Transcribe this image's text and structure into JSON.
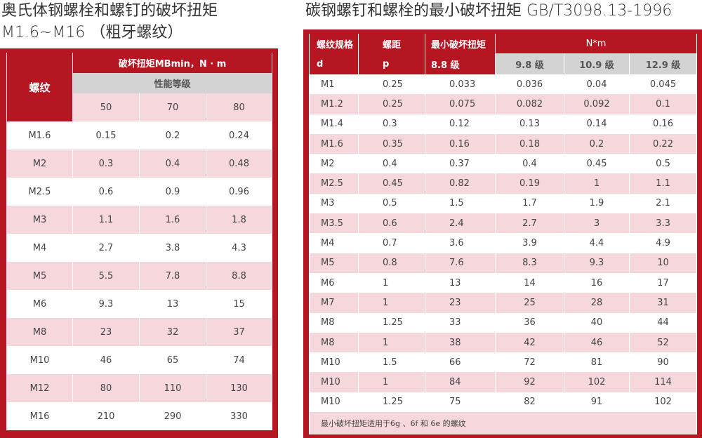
{
  "left": {
    "title_line1": "奥氏体钢螺栓和螺钉的破坏扭矩",
    "title_line2": "M1.6~M16 （粗牙螺纹）",
    "header_thread": "螺纹",
    "header_torque": "破坏扭矩MBmin，N · m",
    "header_grade": "性能等级",
    "grades": [
      "50",
      "70",
      "80"
    ],
    "rows": [
      [
        "M1.6",
        "0.15",
        "0.2",
        "0.24"
      ],
      [
        "M2",
        "0.3",
        "0.4",
        "0.48"
      ],
      [
        "M2.5",
        "0.6",
        "0.9",
        "0.96"
      ],
      [
        "M3",
        "1.1",
        "1.6",
        "1.8"
      ],
      [
        "M4",
        "2.7",
        "3.8",
        "4.3"
      ],
      [
        "M5",
        "5.5",
        "7.8",
        "8.8"
      ],
      [
        "M6",
        "9.3",
        "13",
        "15"
      ],
      [
        "M8",
        "23",
        "32",
        "37"
      ],
      [
        "M10",
        "46",
        "65",
        "74"
      ],
      [
        "M12",
        "80",
        "110",
        "130"
      ],
      [
        "M16",
        "210",
        "290",
        "330"
      ]
    ]
  },
  "right": {
    "title": "碳钢螺钉和螺栓的最小破坏扭矩 GB/T3098.13-1996",
    "h_spec": "螺纹规格",
    "h_spec_sub": "d",
    "h_pitch": "螺距",
    "h_pitch_sub": "p",
    "h_min": "最小破坏扭矩",
    "h_min_sub": "8.8 级",
    "h_unit": "N*m",
    "grades": [
      "9.8 级",
      "10.9 级",
      "12.9 级"
    ],
    "rows": [
      [
        "M1",
        "0.25",
        "0.033",
        "0.036",
        "0.04",
        "0.045"
      ],
      [
        "M1.2",
        "0.25",
        "0.075",
        "0.082",
        "0.092",
        "0.1"
      ],
      [
        "M1.4",
        "0.3",
        "0.12",
        "0.13",
        "0.14",
        "0.16"
      ],
      [
        "M1.6",
        "0.35",
        "0.16",
        "0.18",
        "0.2",
        "0.22"
      ],
      [
        "M2",
        "0.4",
        "0.37",
        "0.4",
        "0.45",
        "0.5"
      ],
      [
        "M2.5",
        "0.45",
        "0.82",
        "0.19",
        "1",
        "1.1"
      ],
      [
        "M3",
        "0.5",
        "1.5",
        "1.7",
        "1.9",
        "2.1"
      ],
      [
        "M3.5",
        "0.6",
        "2.4",
        "2.7",
        "3",
        "3.3"
      ],
      [
        "M4",
        "0.7",
        "3.6",
        "3.9",
        "4.4",
        "4.9"
      ],
      [
        "M5",
        "0.8",
        "7.6",
        "8.3",
        "9.3",
        "10"
      ],
      [
        "M6",
        "1",
        "13",
        "14",
        "16",
        "17"
      ],
      [
        "M7",
        "1",
        "23",
        "25",
        "28",
        "31"
      ],
      [
        "M8",
        "1.25",
        "33",
        "36",
        "40",
        "44"
      ],
      [
        "M8",
        "1",
        "38",
        "42",
        "46",
        "52"
      ],
      [
        "M10",
        "1.5",
        "66",
        "72",
        "81",
        "90"
      ],
      [
        "M10",
        "1",
        "84",
        "92",
        "102",
        "114"
      ],
      [
        "M10",
        "1.25",
        "75",
        "82",
        "91",
        "102"
      ]
    ],
    "footnote": "最小破坏扭矩适用于6g 、6f 和 6e 的螺纹"
  }
}
